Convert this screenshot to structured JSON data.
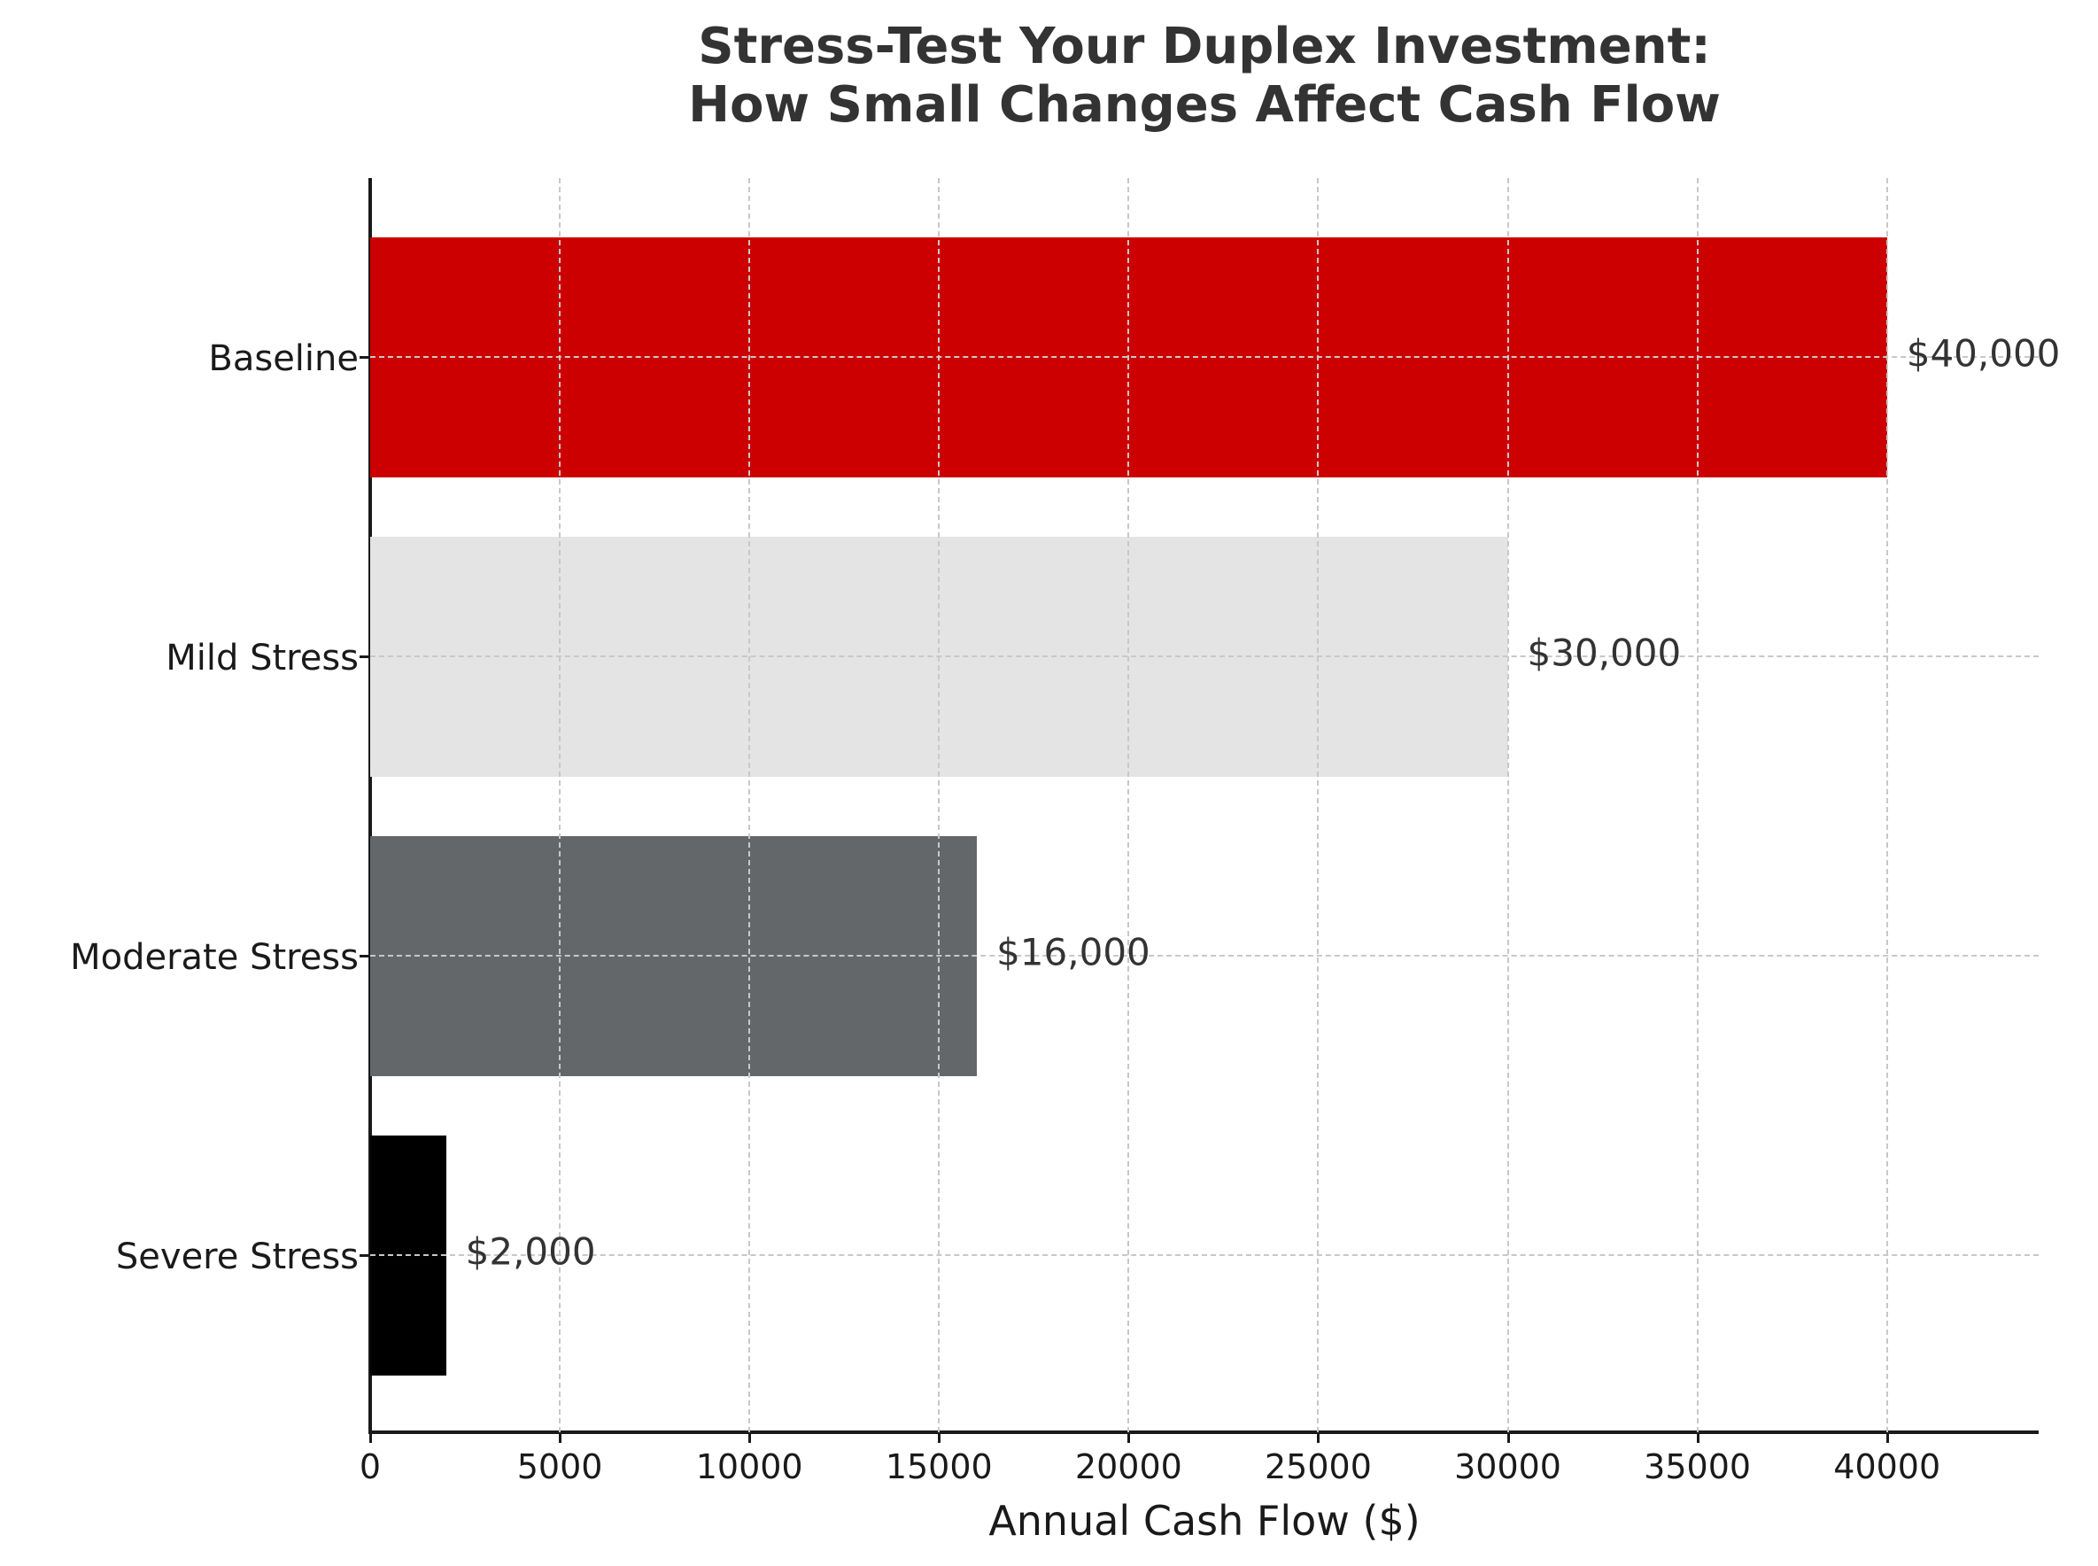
{
  "title": {
    "line1": "Stress-Test Your Duplex Investment:",
    "line2": "How Small Changes Affect Cash Flow"
  },
  "xaxis": {
    "label": "Annual Cash Flow ($)",
    "ticks": [
      "0",
      "5000",
      "10000",
      "15000",
      "20000",
      "25000",
      "30000",
      "35000",
      "40000"
    ]
  },
  "bars": [
    {
      "category": "Baseline",
      "value": 40000,
      "label": "$40,000",
      "color": "#CC0000"
    },
    {
      "category": "Mild Stress",
      "value": 30000,
      "label": "$30,000",
      "color": "#E4E4E4"
    },
    {
      "category": "Moderate Stress",
      "value": 16000,
      "label": "$16,000",
      "color": "#63676A"
    },
    {
      "category": "Severe Stress",
      "value": 2000,
      "label": "$2,000",
      "color": "#000000"
    }
  ],
  "chart_data": {
    "type": "bar",
    "orientation": "horizontal",
    "title": "Stress-Test Your Duplex Investment: How Small Changes Affect Cash Flow",
    "categories": [
      "Baseline",
      "Mild Stress",
      "Moderate Stress",
      "Severe Stress"
    ],
    "values": [
      40000,
      30000,
      16000,
      2000
    ],
    "data_labels": [
      "$40,000",
      "$30,000",
      "$16,000",
      "$2,000"
    ],
    "colors": [
      "#CC0000",
      "#E4E4E4",
      "#63676A",
      "#000000"
    ],
    "xlabel": "Annual Cash Flow ($)",
    "ylabel": "",
    "xlim": [
      0,
      44000
    ],
    "xticks": [
      0,
      5000,
      10000,
      15000,
      20000,
      25000,
      30000,
      35000,
      40000
    ],
    "grid": true,
    "grid_style": "dashed",
    "legend": null
  }
}
